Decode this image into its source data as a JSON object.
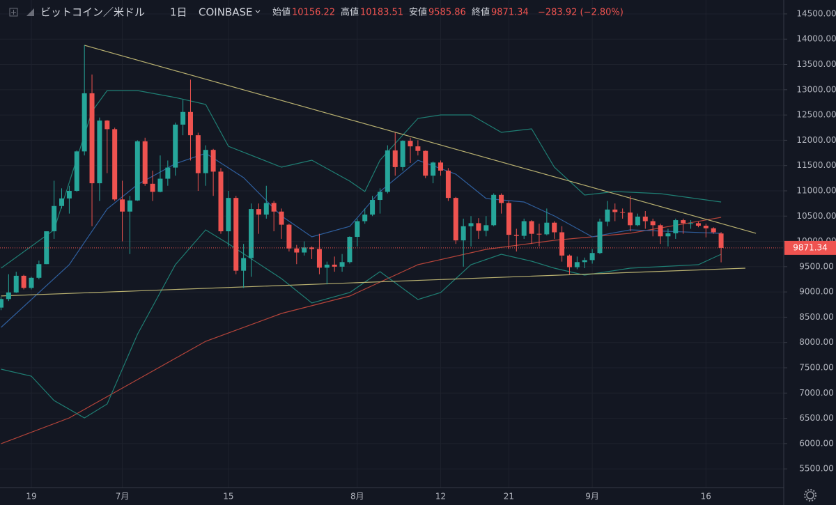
{
  "chart_data": {
    "type": "candlestick",
    "title": "ビットコイン／米ドル",
    "interval": "1日",
    "exchange": "COINBASE",
    "open_label": "始値",
    "high_label": "高値",
    "low_label": "安値",
    "close_label": "終値",
    "change": "−283.92 (−2.80%)",
    "up_color": "#26a69a",
    "down_color": "#ef5350",
    "categories": [
      null,
      null,
      null,
      null,
      "19",
      null,
      null,
      null,
      null,
      null,
      null,
      null,
      null,
      null,
      null,
      null,
      "7月",
      null,
      null,
      null,
      null,
      null,
      null,
      null,
      null,
      null,
      null,
      null,
      null,
      null,
      "15",
      null,
      null,
      null,
      null,
      null,
      null,
      null,
      null,
      null,
      null,
      null,
      null,
      null,
      null,
      null,
      null,
      "8月",
      null,
      null,
      null,
      null,
      null,
      null,
      null,
      null,
      null,
      null,
      "12",
      null,
      null,
      null,
      null,
      null,
      null,
      null,
      null,
      "21",
      null,
      null,
      null,
      null,
      null,
      null,
      null,
      null,
      null,
      null,
      "9月",
      null,
      null,
      null,
      null,
      null,
      null,
      null,
      null,
      null,
      null,
      null,
      null,
      null,
      null,
      "16",
      null,
      null
    ],
    "open": [
      8690,
      8860,
      8990,
      9320,
      9080,
      9280,
      9550,
      10200,
      10700,
      10850,
      11000,
      11780,
      12930,
      11150,
      12390,
      12220,
      10830,
      10590,
      10810,
      11980,
      11140,
      10980,
      11240,
      11460,
      12310,
      12560,
      12100,
      11350,
      11810,
      11380,
      10200,
      10860,
      9420,
      9670,
      10640,
      10530,
      10760,
      10590,
      10330,
      9860,
      9780,
      9880,
      9850,
      9480,
      9540,
      9500,
      9590,
      10090,
      10400,
      10530,
      10820,
      10980,
      11800,
      11470,
      11990,
      11880,
      11790,
      11300,
      11560,
      11400,
      10860,
      10020,
      10300,
      10360,
      10210,
      10320,
      10920,
      10760,
      10130,
      10110,
      10400,
      10150,
      10140,
      10370,
      10180,
      9720,
      9490,
      9590,
      9630,
      9770,
      10390,
      10630,
      10580,
      10570,
      10320,
      10490,
      10400,
      10320,
      10100,
      10160,
      10420,
      10360,
      10360,
      10310,
      10260,
      10156.22
    ],
    "high": [
      8900,
      9350,
      9400,
      9340,
      9300,
      9620,
      10200,
      11200,
      11050,
      11100,
      11800,
      13880,
      13300,
      12450,
      12400,
      12250,
      11200,
      10900,
      12000,
      12050,
      11400,
      11700,
      11600,
      12350,
      12800,
      13200,
      12150,
      11900,
      11830,
      11450,
      11000,
      10900,
      9950,
      10750,
      10750,
      11100,
      10800,
      10650,
      10350,
      9930,
      10000,
      9900,
      10150,
      9600,
      9700,
      9750,
      10100,
      10450,
      10650,
      10900,
      11050,
      11900,
      12150,
      12000,
      12050,
      12000,
      11800,
      11580,
      11600,
      11450,
      10880,
      10450,
      10500,
      10460,
      10500,
      10950,
      10950,
      10800,
      10250,
      10450,
      10420,
      10350,
      10650,
      10400,
      10300,
      9740,
      9700,
      9680,
      9850,
      10450,
      10800,
      10750,
      10650,
      10900,
      10550,
      10600,
      10450,
      10350,
      10250,
      10450,
      10450,
      10420,
      10390,
      10350,
      10280,
      10183.51
    ],
    "low": [
      8640,
      8820,
      8980,
      9050,
      9050,
      9250,
      9550,
      10050,
      10650,
      10550,
      10980,
      11700,
      10300,
      10800,
      11350,
      10800,
      10000,
      9750,
      10800,
      11100,
      10800,
      10970,
      11100,
      11300,
      12100,
      11600,
      11000,
      11100,
      10900,
      10150,
      9900,
      9350,
      9080,
      9300,
      10150,
      10450,
      10200,
      10050,
      9800,
      9550,
      9720,
      9650,
      9350,
      9150,
      9400,
      9400,
      9560,
      9900,
      10350,
      10500,
      10550,
      10950,
      11300,
      11400,
      11550,
      11700,
      11250,
      11150,
      11300,
      10800,
      9950,
      9500,
      9900,
      10050,
      10100,
      10300,
      10550,
      9850,
      9800,
      10050,
      9950,
      9900,
      10120,
      10050,
      9600,
      9350,
      9450,
      9470,
      9560,
      9750,
      10300,
      10400,
      10450,
      10200,
      10300,
      10250,
      10100,
      9950,
      9900,
      10050,
      10150,
      10250,
      10280,
      10080,
      10150,
      9585.86
    ],
    "close": [
      8860,
      8990,
      9320,
      9080,
      9280,
      9550,
      10200,
      10700,
      10850,
      11000,
      11780,
      12930,
      11150,
      12390,
      12220,
      10830,
      10590,
      10810,
      11980,
      11140,
      10980,
      11240,
      11460,
      12310,
      12560,
      12100,
      11350,
      11810,
      11380,
      10200,
      10860,
      9420,
      9670,
      10640,
      10530,
      10760,
      10590,
      10330,
      9860,
      9780,
      9880,
      9850,
      9480,
      9540,
      9500,
      9590,
      10090,
      10400,
      10530,
      10820,
      10980,
      11800,
      11470,
      11990,
      11880,
      11790,
      11300,
      11560,
      11400,
      10860,
      10020,
      10300,
      10360,
      10210,
      10320,
      10920,
      10760,
      10130,
      10110,
      10400,
      10150,
      10140,
      10370,
      10180,
      9720,
      9490,
      9590,
      9630,
      9770,
      10390,
      10630,
      10580,
      10570,
      10320,
      10490,
      10400,
      10320,
      10100,
      10160,
      10420,
      10360,
      10360,
      10310,
      10260,
      10180,
      9871.34
    ],
    "lines": [
      {
        "color": "#b5443a",
        "x": [
          0,
          9,
          18,
          27,
          37,
          46,
          55,
          64,
          73,
          83,
          95
        ],
        "values": [
          5998,
          6508,
          7265,
          8023,
          8575,
          8919,
          9539,
          9842,
          10021,
          10160,
          10476
        ]
      },
      {
        "color": "#2f5f9e",
        "x": [
          0,
          9,
          14,
          18,
          23,
          27,
          32,
          37,
          41,
          46,
          50,
          55,
          60,
          64,
          69,
          73,
          78,
          83,
          95
        ],
        "values": [
          8299,
          9539,
          10641,
          11124,
          11537,
          11744,
          11261,
          10503,
          10090,
          10297,
          10986,
          11606,
          11330,
          10848,
          10779,
          10503,
          10090,
          10228,
          10159
        ]
      },
      {
        "color": "#1f7f74",
        "x": [
          0,
          7,
          12,
          14,
          18,
          23,
          27,
          30,
          37,
          41,
          46,
          48,
          50,
          55,
          58,
          62,
          66,
          70,
          73,
          77,
          81,
          87,
          95
        ],
        "values": [
          9470,
          10228,
          12571,
          12984,
          12984,
          12846,
          12709,
          11882,
          11468,
          11606,
          11192,
          10986,
          11606,
          12433,
          12502,
          12502,
          12157,
          12226,
          11468,
          10917,
          10986,
          10945,
          10779
        ]
      },
      {
        "color": "#1f7f74",
        "x": [
          0,
          4,
          7,
          11,
          14,
          18,
          23,
          27,
          30,
          37,
          41,
          46,
          50,
          55,
          58,
          62,
          66,
          70,
          73,
          77,
          83,
          92,
          95
        ],
        "values": [
          7472,
          7334,
          6852,
          6508,
          6783,
          8161,
          9539,
          10228,
          9952,
          9263,
          8781,
          8988,
          9401,
          8850,
          8988,
          9539,
          9746,
          9608,
          9470,
          9332,
          9470,
          9539,
          9746
        ]
      },
      {
        "color": "#b8b070",
        "x": [
          11,
          99.6
        ],
        "values": [
          13880,
          10160
        ]
      },
      {
        "color": "#b8b070",
        "x": [
          0,
          98.2
        ],
        "values": [
          8920,
          9470
        ]
      }
    ],
    "ylim": [
      5130,
      14775
    ],
    "yticks": [
      {
        "value": 5500,
        "label": "5500.00"
      },
      {
        "value": 6000,
        "label": "6000.00"
      },
      {
        "value": 6500,
        "label": "6500.00"
      },
      {
        "value": 7000,
        "label": "7000.00"
      },
      {
        "value": 7500,
        "label": "7500.00"
      },
      {
        "value": 8000,
        "label": "8000.00"
      },
      {
        "value": 8500,
        "label": "8500.00"
      },
      {
        "value": 9000,
        "label": "9000.00"
      },
      {
        "value": 9500,
        "label": "9500.00"
      },
      {
        "value": 10000,
        "label": "10000.00"
      },
      {
        "value": 10500,
        "label": "10500.00"
      },
      {
        "value": 11000,
        "label": "11000.00"
      },
      {
        "value": 11500,
        "label": "11500.00"
      },
      {
        "value": 12000,
        "label": "12000.00"
      },
      {
        "value": 12500,
        "label": "12500.00"
      },
      {
        "value": 13000,
        "label": "13000.00"
      },
      {
        "value": 13500,
        "label": "13500.00"
      },
      {
        "value": 14000,
        "label": "14000.00"
      },
      {
        "value": 14500,
        "label": "14500.00"
      }
    ],
    "grid": true
  }
}
